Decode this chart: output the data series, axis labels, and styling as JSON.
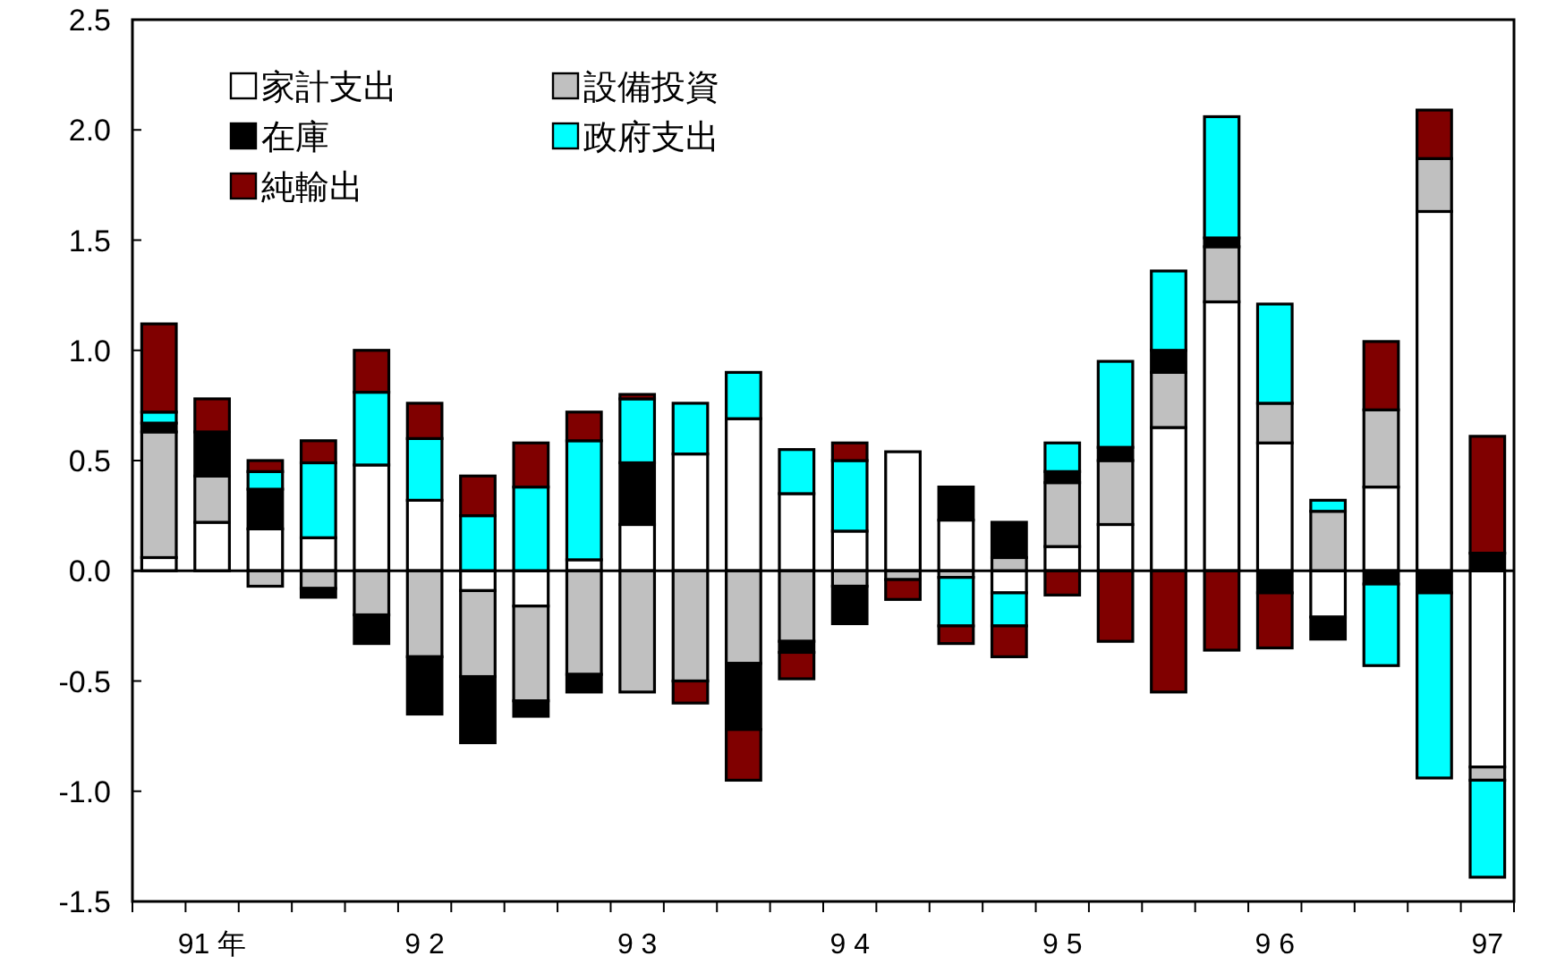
{
  "chart_data": {
    "type": "bar",
    "stacked": true,
    "categories": [
      null,
      "91 年",
      null,
      null,
      null,
      "9 2",
      null,
      null,
      null,
      "9 3",
      null,
      null,
      null,
      "9 4",
      null,
      null,
      null,
      "9 5",
      null,
      null,
      null,
      "9 6",
      null,
      null,
      null,
      "97"
    ],
    "series": [
      {
        "name": "家計支出",
        "color": "#ffffff",
        "values": [
          0.06,
          0.22,
          0.19,
          0.15,
          0.48,
          0.32,
          -0.09,
          -0.16,
          0.05,
          0.21,
          0.53,
          0.69,
          0.35,
          0.18,
          0.54,
          0.23,
          -0.1,
          0.11,
          0.21,
          0.65,
          1.22,
          0.58,
          -0.21,
          0.38,
          1.63,
          -0.89
        ]
      },
      {
        "name": "設備投資",
        "color": "#c0c0c0",
        "values": [
          0.57,
          0.21,
          -0.07,
          -0.08,
          -0.2,
          -0.39,
          -0.39,
          -0.43,
          -0.47,
          -0.55,
          -0.5,
          -0.42,
          -0.32,
          -0.07,
          -0.04,
          -0.03,
          0.06,
          0.29,
          0.29,
          0.25,
          0.25,
          0.18,
          0.27,
          0.35,
          0.24,
          -0.06
        ]
      },
      {
        "name": "在庫",
        "color": "#000000",
        "values": [
          0.04,
          0.2,
          0.18,
          -0.04,
          -0.13,
          -0.26,
          -0.3,
          -0.07,
          -0.08,
          0.28,
          null,
          -0.3,
          -0.05,
          -0.17,
          null,
          0.15,
          0.16,
          0.05,
          0.06,
          0.1,
          0.04,
          -0.1,
          -0.1,
          -0.06,
          -0.1,
          0.08
        ]
      },
      {
        "name": "政府支出",
        "color": "#00ffff",
        "values": [
          0.05,
          null,
          0.08,
          0.34,
          0.33,
          0.28,
          0.25,
          0.38,
          0.54,
          0.29,
          0.23,
          0.21,
          0.2,
          0.32,
          null,
          -0.22,
          -0.15,
          0.13,
          0.39,
          0.36,
          0.55,
          0.45,
          0.05,
          -0.37,
          -0.84,
          -0.44
        ]
      },
      {
        "name": "純輸出",
        "color": "#800000",
        "values": [
          0.4,
          0.15,
          0.05,
          0.1,
          0.19,
          0.16,
          0.18,
          0.2,
          0.13,
          0.02,
          -0.1,
          -0.23,
          -0.12,
          0.08,
          -0.09,
          -0.08,
          -0.14,
          -0.11,
          -0.32,
          -0.55,
          -0.36,
          -0.25,
          null,
          0.31,
          0.22,
          0.53
        ]
      }
    ],
    "ylim": [
      -1.5,
      2.5
    ],
    "yticks": [
      {
        "value": -1.5,
        "label": "-1.5"
      },
      {
        "value": -1,
        "label": "-1.0"
      },
      {
        "value": -0.5,
        "label": "-0.5"
      },
      {
        "value": 0,
        "label": "0.0"
      },
      0.5,
      {
        "value": 1,
        "label": "1.0"
      },
      1.5,
      {
        "value": 2,
        "label": "2.0"
      },
      2.5
    ],
    "ref_lines": [
      {
        "axis": "y",
        "value": 0
      }
    ],
    "grid": false,
    "legend": "top left"
  }
}
